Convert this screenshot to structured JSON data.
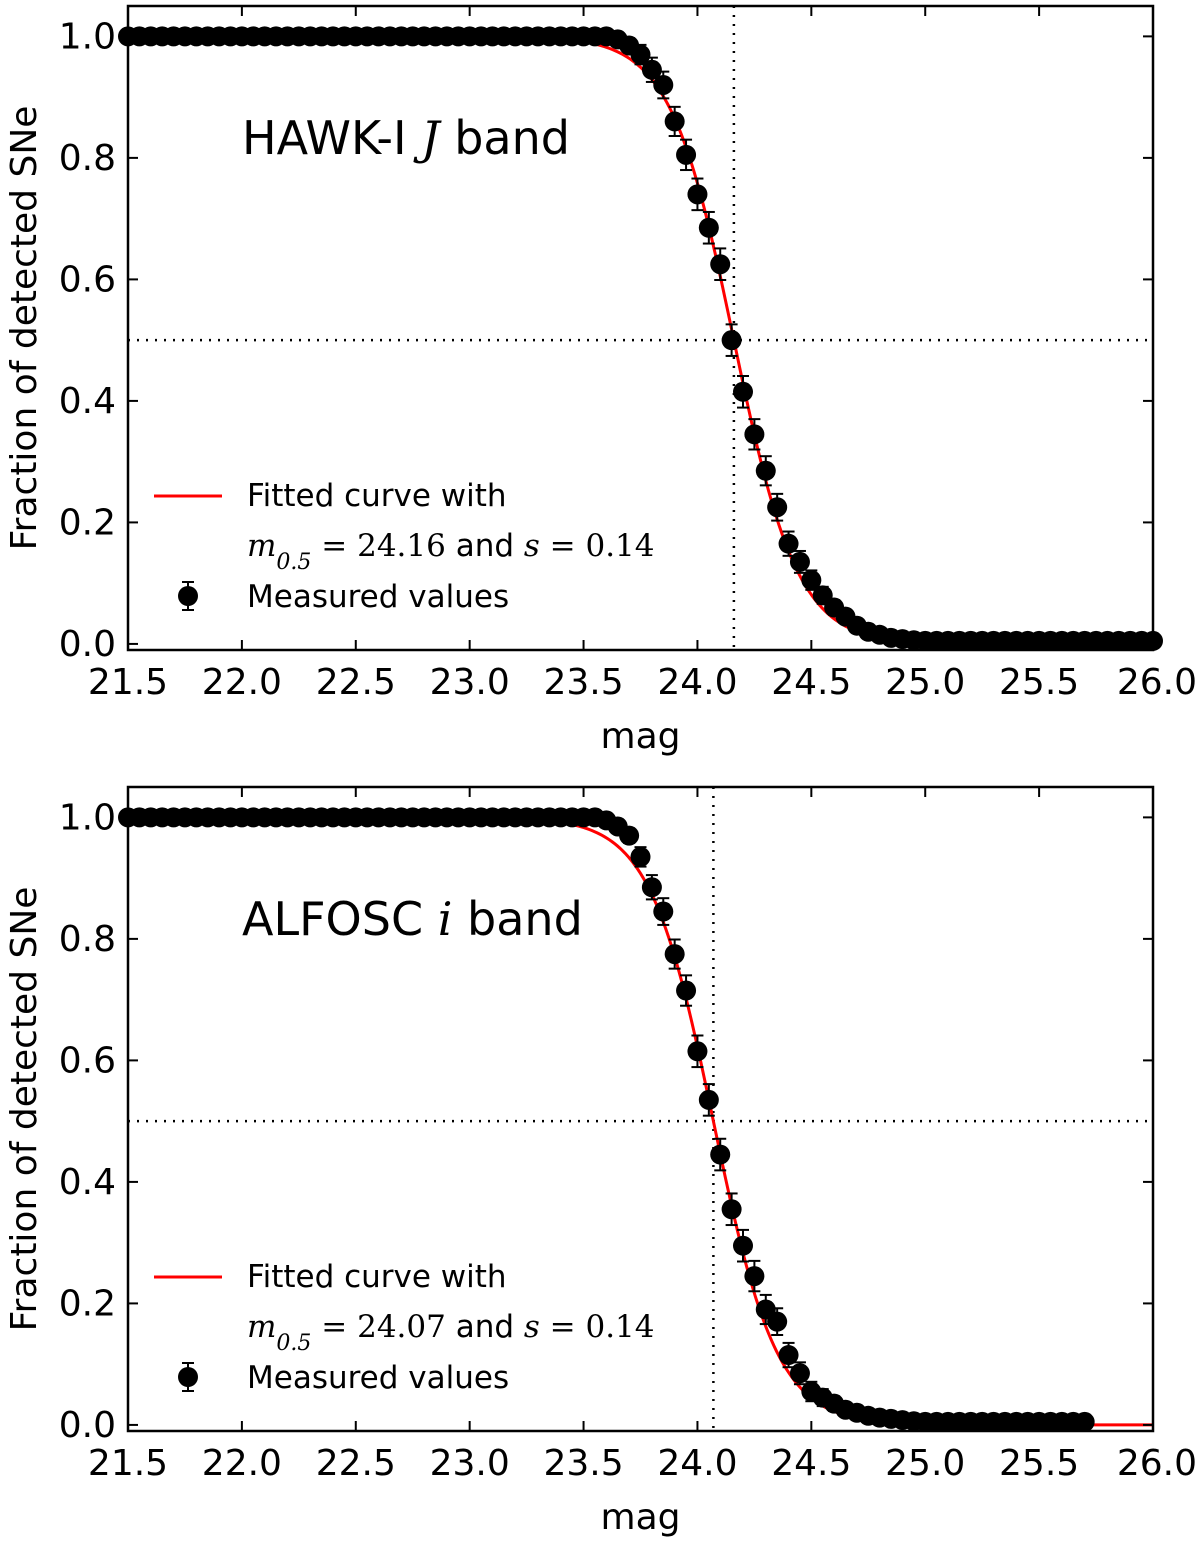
{
  "chart_data": [
    {
      "type": "scatter",
      "title": "HAWK-I J band",
      "title_parts": {
        "prefix": "HAWK-I ",
        "math": "J",
        "suffix": " band"
      },
      "xlabel": "mag",
      "ylabel": "Fraction of detected SNe",
      "xlim": [
        21.5,
        26.0
      ],
      "ylim": [
        -0.01,
        1.05
      ],
      "xticks": [
        "21.5",
        "22.0",
        "22.5",
        "23.0",
        "23.5",
        "24.0",
        "24.5",
        "25.0",
        "25.5",
        "26.0"
      ],
      "yticks": [
        "0.0",
        "0.2",
        "0.4",
        "0.6",
        "0.8",
        "1.0"
      ],
      "legend_position": "lower-left",
      "vline": 24.16,
      "hline": 0.5,
      "fit": {
        "name": "Fitted curve with",
        "m05_label": "m",
        "m05_sub": "0.5",
        "m05_value": "24.16",
        "s_label": "s",
        "s_value": "0.14",
        "and_text": " and ",
        "m05": 24.16,
        "s": 0.14,
        "color": "#ff0000"
      },
      "legend_line_label": "Fitted curve with",
      "legend_points_label": "Measured values",
      "x": [
        21.5,
        21.55,
        21.6,
        21.65,
        21.7,
        21.75,
        21.8,
        21.85,
        21.9,
        21.95,
        22.0,
        22.05,
        22.1,
        22.15,
        22.2,
        22.25,
        22.3,
        22.35,
        22.4,
        22.45,
        22.5,
        22.55,
        22.6,
        22.65,
        22.7,
        22.75,
        22.8,
        22.85,
        22.9,
        22.95,
        23.0,
        23.05,
        23.1,
        23.15,
        23.2,
        23.25,
        23.3,
        23.35,
        23.4,
        23.45,
        23.5,
        23.55,
        23.6,
        23.65,
        23.7,
        23.75,
        23.8,
        23.85,
        23.9,
        23.95,
        24.0,
        24.05,
        24.1,
        24.15,
        24.2,
        24.25,
        24.3,
        24.35,
        24.4,
        24.45,
        24.5,
        24.55,
        24.6,
        24.65,
        24.7,
        24.75,
        24.8,
        24.85,
        24.9,
        24.95,
        25.0,
        25.05,
        25.1,
        25.15,
        25.2,
        25.25,
        25.3,
        25.35,
        25.4,
        25.45,
        25.5,
        25.55,
        25.6,
        25.65,
        25.7,
        25.75,
        25.8,
        25.85,
        25.9,
        25.95,
        26.0
      ],
      "y": [
        1.0,
        1.0,
        1.0,
        1.0,
        1.0,
        1.0,
        1.0,
        1.0,
        1.0,
        1.0,
        1.0,
        1.0,
        1.0,
        1.0,
        1.0,
        1.0,
        1.0,
        1.0,
        1.0,
        1.0,
        1.0,
        1.0,
        1.0,
        1.0,
        1.0,
        1.0,
        1.0,
        1.0,
        1.0,
        1.0,
        1.0,
        1.0,
        1.0,
        1.0,
        1.0,
        1.0,
        1.0,
        1.0,
        1.0,
        1.0,
        1.0,
        1.0,
        1.0,
        0.995,
        0.985,
        0.97,
        0.945,
        0.92,
        0.86,
        0.805,
        0.74,
        0.685,
        0.625,
        0.5,
        0.415,
        0.345,
        0.285,
        0.225,
        0.165,
        0.135,
        0.105,
        0.08,
        0.06,
        0.045,
        0.03,
        0.02,
        0.015,
        0.01,
        0.008,
        0.006,
        0.005,
        0.005,
        0.005,
        0.005,
        0.005,
        0.005,
        0.005,
        0.005,
        0.005,
        0.005,
        0.005,
        0.005,
        0.005,
        0.005,
        0.005,
        0.005,
        0.005,
        0.005,
        0.005,
        0.005,
        0.005
      ],
      "err": [
        0.003,
        0.003,
        0.003,
        0.003,
        0.003,
        0.003,
        0.003,
        0.003,
        0.003,
        0.003,
        0.003,
        0.003,
        0.003,
        0.003,
        0.003,
        0.003,
        0.003,
        0.003,
        0.003,
        0.003,
        0.003,
        0.003,
        0.003,
        0.003,
        0.003,
        0.003,
        0.003,
        0.003,
        0.003,
        0.003,
        0.003,
        0.003,
        0.003,
        0.003,
        0.003,
        0.003,
        0.003,
        0.003,
        0.003,
        0.003,
        0.003,
        0.003,
        0.005,
        0.008,
        0.012,
        0.016,
        0.02,
        0.022,
        0.024,
        0.025,
        0.026,
        0.026,
        0.026,
        0.026,
        0.026,
        0.025,
        0.024,
        0.022,
        0.02,
        0.018,
        0.016,
        0.014,
        0.012,
        0.01,
        0.008,
        0.007,
        0.006,
        0.005,
        0.004,
        0.004,
        0.004,
        0.004,
        0.004,
        0.004,
        0.004,
        0.004,
        0.004,
        0.004,
        0.004,
        0.004,
        0.004,
        0.004,
        0.004,
        0.004,
        0.004,
        0.004,
        0.004,
        0.004,
        0.004,
        0.004,
        0.004
      ]
    },
    {
      "type": "scatter",
      "title": "ALFOSC i band",
      "title_parts": {
        "prefix": "ALFOSC ",
        "math": "i",
        "suffix": " band"
      },
      "xlabel": "mag",
      "ylabel": "Fraction of detected SNe",
      "xlim": [
        21.5,
        26.0
      ],
      "ylim": [
        -0.01,
        1.05
      ],
      "xticks": [
        "21.5",
        "22.0",
        "22.5",
        "23.0",
        "23.5",
        "24.0",
        "24.5",
        "25.0",
        "25.5",
        "26.0"
      ],
      "yticks": [
        "0.0",
        "0.2",
        "0.4",
        "0.6",
        "0.8",
        "1.0"
      ],
      "legend_position": "lower-left",
      "vline": 24.07,
      "hline": 0.5,
      "fit": {
        "name": "Fitted curve with",
        "m05_label": "m",
        "m05_sub": "0.5",
        "m05_value": "24.07",
        "s_label": "s",
        "s_value": "0.14",
        "and_text": " and ",
        "m05": 24.07,
        "s": 0.14,
        "color": "#ff0000"
      },
      "legend_line_label": "Fitted curve with",
      "legend_points_label": "Measured values",
      "x": [
        21.5,
        21.55,
        21.6,
        21.65,
        21.7,
        21.75,
        21.8,
        21.85,
        21.9,
        21.95,
        22.0,
        22.05,
        22.1,
        22.15,
        22.2,
        22.25,
        22.3,
        22.35,
        22.4,
        22.45,
        22.5,
        22.55,
        22.6,
        22.65,
        22.7,
        22.75,
        22.8,
        22.85,
        22.9,
        22.95,
        23.0,
        23.05,
        23.1,
        23.15,
        23.2,
        23.25,
        23.3,
        23.35,
        23.4,
        23.45,
        23.5,
        23.55,
        23.6,
        23.65,
        23.7,
        23.75,
        23.8,
        23.85,
        23.9,
        23.95,
        24.0,
        24.05,
        24.1,
        24.15,
        24.2,
        24.25,
        24.3,
        24.35,
        24.4,
        24.45,
        24.5,
        24.55,
        24.6,
        24.65,
        24.7,
        24.75,
        24.8,
        24.85,
        24.9,
        24.95,
        25.0,
        25.05,
        25.1,
        25.15,
        25.2,
        25.25,
        25.3,
        25.35,
        25.4,
        25.45,
        25.5,
        25.55,
        25.6,
        25.65,
        25.7
      ],
      "y": [
        1.0,
        1.0,
        1.0,
        1.0,
        1.0,
        1.0,
        1.0,
        1.0,
        1.0,
        1.0,
        1.0,
        1.0,
        1.0,
        1.0,
        1.0,
        1.0,
        1.0,
        1.0,
        1.0,
        1.0,
        1.0,
        1.0,
        1.0,
        1.0,
        1.0,
        1.0,
        1.0,
        1.0,
        1.0,
        1.0,
        1.0,
        1.0,
        1.0,
        1.0,
        1.0,
        1.0,
        1.0,
        1.0,
        1.0,
        1.0,
        1.0,
        1.0,
        0.995,
        0.985,
        0.97,
        0.935,
        0.885,
        0.845,
        0.775,
        0.715,
        0.615,
        0.535,
        0.445,
        0.355,
        0.295,
        0.245,
        0.19,
        0.17,
        0.115,
        0.085,
        0.055,
        0.045,
        0.035,
        0.025,
        0.02,
        0.015,
        0.012,
        0.01,
        0.008,
        0.006,
        0.005,
        0.005,
        0.005,
        0.005,
        0.005,
        0.005,
        0.005,
        0.005,
        0.005,
        0.005,
        0.005,
        0.005,
        0.005,
        0.005,
        0.005
      ],
      "err": [
        0.003,
        0.003,
        0.003,
        0.003,
        0.003,
        0.003,
        0.003,
        0.003,
        0.003,
        0.003,
        0.003,
        0.003,
        0.003,
        0.003,
        0.003,
        0.003,
        0.003,
        0.003,
        0.003,
        0.003,
        0.003,
        0.003,
        0.003,
        0.003,
        0.003,
        0.003,
        0.003,
        0.003,
        0.003,
        0.003,
        0.003,
        0.003,
        0.003,
        0.003,
        0.003,
        0.003,
        0.003,
        0.003,
        0.003,
        0.003,
        0.003,
        0.003,
        0.005,
        0.008,
        0.012,
        0.016,
        0.02,
        0.022,
        0.024,
        0.025,
        0.026,
        0.026,
        0.026,
        0.026,
        0.026,
        0.025,
        0.024,
        0.022,
        0.02,
        0.018,
        0.016,
        0.014,
        0.012,
        0.01,
        0.008,
        0.007,
        0.006,
        0.005,
        0.004,
        0.004,
        0.004,
        0.004,
        0.004,
        0.004,
        0.004,
        0.004,
        0.004,
        0.004,
        0.004,
        0.004,
        0.004,
        0.004,
        0.004,
        0.004,
        0.004
      ]
    }
  ]
}
